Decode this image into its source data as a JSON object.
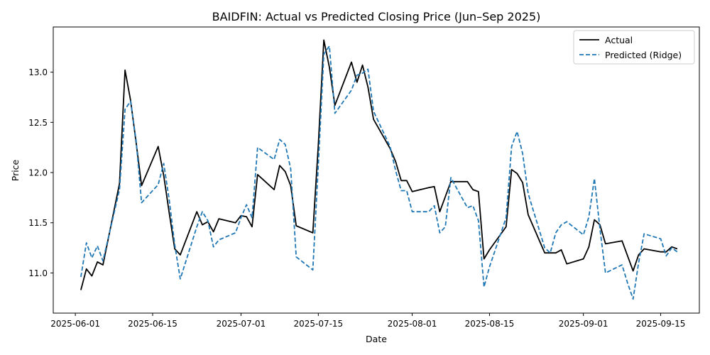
{
  "chart_data": {
    "type": "line",
    "title": "BAIDFIN: Actual vs Predicted Closing Price (Jun–Sep 2025)",
    "xlabel": "Date",
    "ylabel": "Price",
    "grid": false,
    "legend_position": "top-right",
    "xlim": [
      "2025-05-28",
      "2025-09-22"
    ],
    "ylim": [
      10.6,
      13.45
    ],
    "x_ticks": [
      "2025-06-01",
      "2025-06-15",
      "2025-07-01",
      "2025-07-15",
      "2025-08-01",
      "2025-08-15",
      "2025-09-01",
      "2025-09-15"
    ],
    "y_ticks": [
      "11.0",
      "11.5",
      "12.0",
      "12.5",
      "13.0"
    ],
    "series": [
      {
        "name": "Actual",
        "color": "#000000",
        "dash": "solid",
        "points": [
          [
            "2025-06-02",
            10.83
          ],
          [
            "2025-06-03",
            11.04
          ],
          [
            "2025-06-04",
            10.97
          ],
          [
            "2025-06-05",
            11.11
          ],
          [
            "2025-06-06",
            11.08
          ],
          [
            "2025-06-09",
            11.89
          ],
          [
            "2025-06-10",
            13.02
          ],
          [
            "2025-06-11",
            12.72
          ],
          [
            "2025-06-12",
            12.3
          ],
          [
            "2025-06-13",
            11.87
          ],
          [
            "2025-06-16",
            12.26
          ],
          [
            "2025-06-17",
            11.97
          ],
          [
            "2025-06-18",
            11.6
          ],
          [
            "2025-06-19",
            11.24
          ],
          [
            "2025-06-20",
            11.18
          ],
          [
            "2025-06-23",
            11.61
          ],
          [
            "2025-06-24",
            11.48
          ],
          [
            "2025-06-25",
            11.51
          ],
          [
            "2025-06-26",
            11.41
          ],
          [
            "2025-06-27",
            11.54
          ],
          [
            "2025-06-30",
            11.5
          ],
          [
            "2025-07-01",
            11.57
          ],
          [
            "2025-07-02",
            11.56
          ],
          [
            "2025-07-03",
            11.46
          ],
          [
            "2025-07-04",
            11.98
          ],
          [
            "2025-07-07",
            11.83
          ],
          [
            "2025-07-08",
            12.07
          ],
          [
            "2025-07-09",
            12.01
          ],
          [
            "2025-07-10",
            11.87
          ],
          [
            "2025-07-11",
            11.47
          ],
          [
            "2025-07-14",
            11.4
          ],
          [
            "2025-07-15",
            12.27
          ],
          [
            "2025-07-16",
            13.32
          ],
          [
            "2025-07-17",
            13.05
          ],
          [
            "2025-07-18",
            12.67
          ],
          [
            "2025-07-21",
            13.1
          ],
          [
            "2025-07-22",
            12.9
          ],
          [
            "2025-07-23",
            13.07
          ],
          [
            "2025-07-24",
            12.85
          ],
          [
            "2025-07-25",
            12.53
          ],
          [
            "2025-07-28",
            12.24
          ],
          [
            "2025-07-29",
            12.11
          ],
          [
            "2025-07-30",
            11.92
          ],
          [
            "2025-07-31",
            11.92
          ],
          [
            "2025-08-01",
            11.81
          ],
          [
            "2025-08-04",
            11.85
          ],
          [
            "2025-08-05",
            11.86
          ],
          [
            "2025-08-06",
            11.61
          ],
          [
            "2025-08-07",
            11.76
          ],
          [
            "2025-08-08",
            11.91
          ],
          [
            "2025-08-11",
            11.91
          ],
          [
            "2025-08-12",
            11.83
          ],
          [
            "2025-08-13",
            11.81
          ],
          [
            "2025-08-14",
            11.14
          ],
          [
            "2025-08-15",
            11.23
          ],
          [
            "2025-08-18",
            11.46
          ],
          [
            "2025-08-19",
            12.03
          ],
          [
            "2025-08-20",
            11.99
          ],
          [
            "2025-08-21",
            11.9
          ],
          [
            "2025-08-22",
            11.58
          ],
          [
            "2025-08-25",
            11.2
          ],
          [
            "2025-08-26",
            11.2
          ],
          [
            "2025-08-27",
            11.2
          ],
          [
            "2025-08-28",
            11.23
          ],
          [
            "2025-08-29",
            11.09
          ],
          [
            "2025-09-01",
            11.14
          ],
          [
            "2025-09-02",
            11.26
          ],
          [
            "2025-09-03",
            11.53
          ],
          [
            "2025-09-04",
            11.48
          ],
          [
            "2025-09-05",
            11.29
          ],
          [
            "2025-09-08",
            11.32
          ],
          [
            "2025-09-09",
            11.17
          ],
          [
            "2025-09-10",
            11.02
          ],
          [
            "2025-09-11",
            11.18
          ],
          [
            "2025-09-12",
            11.24
          ],
          [
            "2025-09-15",
            11.21
          ],
          [
            "2025-09-16",
            11.21
          ],
          [
            "2025-09-17",
            11.26
          ],
          [
            "2025-09-18",
            11.24
          ]
        ]
      },
      {
        "name": "Predicted (Ridge)",
        "color": "#1f77b4",
        "dash": "dashed",
        "points": [
          [
            "2025-06-02",
            10.96
          ],
          [
            "2025-06-03",
            11.3
          ],
          [
            "2025-06-04",
            11.15
          ],
          [
            "2025-06-05",
            11.27
          ],
          [
            "2025-06-06",
            11.12
          ],
          [
            "2025-06-09",
            11.83
          ],
          [
            "2025-06-10",
            12.63
          ],
          [
            "2025-06-11",
            12.71
          ],
          [
            "2025-06-12",
            12.32
          ],
          [
            "2025-06-13",
            11.7
          ],
          [
            "2025-06-16",
            11.88
          ],
          [
            "2025-06-17",
            12.09
          ],
          [
            "2025-06-18",
            11.73
          ],
          [
            "2025-06-19",
            11.28
          ],
          [
            "2025-06-20",
            10.94
          ],
          [
            "2025-06-23",
            11.46
          ],
          [
            "2025-06-24",
            11.61
          ],
          [
            "2025-06-25",
            11.52
          ],
          [
            "2025-06-26",
            11.26
          ],
          [
            "2025-06-27",
            11.33
          ],
          [
            "2025-06-30",
            11.4
          ],
          [
            "2025-07-01",
            11.55
          ],
          [
            "2025-07-02",
            11.68
          ],
          [
            "2025-07-03",
            11.55
          ],
          [
            "2025-07-04",
            12.25
          ],
          [
            "2025-07-07",
            12.13
          ],
          [
            "2025-07-08",
            12.33
          ],
          [
            "2025-07-09",
            12.28
          ],
          [
            "2025-07-10",
            12.04
          ],
          [
            "2025-07-11",
            11.16
          ],
          [
            "2025-07-14",
            11.03
          ],
          [
            "2025-07-15",
            12.07
          ],
          [
            "2025-07-16",
            13.18
          ],
          [
            "2025-07-17",
            13.26
          ],
          [
            "2025-07-18",
            12.59
          ],
          [
            "2025-07-21",
            12.82
          ],
          [
            "2025-07-22",
            12.97
          ],
          [
            "2025-07-23",
            12.99
          ],
          [
            "2025-07-24",
            13.03
          ],
          [
            "2025-07-25",
            12.61
          ],
          [
            "2025-07-28",
            12.26
          ],
          [
            "2025-07-29",
            12.02
          ],
          [
            "2025-07-30",
            11.82
          ],
          [
            "2025-07-31",
            11.82
          ],
          [
            "2025-08-01",
            11.61
          ],
          [
            "2025-08-04",
            11.61
          ],
          [
            "2025-08-05",
            11.67
          ],
          [
            "2025-08-06",
            11.4
          ],
          [
            "2025-08-07",
            11.46
          ],
          [
            "2025-08-08",
            11.95
          ],
          [
            "2025-08-11",
            11.65
          ],
          [
            "2025-08-12",
            11.67
          ],
          [
            "2025-08-13",
            11.52
          ],
          [
            "2025-08-14",
            10.86
          ],
          [
            "2025-08-15",
            11.06
          ],
          [
            "2025-08-18",
            11.55
          ],
          [
            "2025-08-19",
            12.26
          ],
          [
            "2025-08-20",
            12.41
          ],
          [
            "2025-08-21",
            12.19
          ],
          [
            "2025-08-22",
            11.79
          ],
          [
            "2025-08-25",
            11.25
          ],
          [
            "2025-08-26",
            11.2
          ],
          [
            "2025-08-27",
            11.4
          ],
          [
            "2025-08-28",
            11.48
          ],
          [
            "2025-08-29",
            11.51
          ],
          [
            "2025-09-01",
            11.38
          ],
          [
            "2025-09-02",
            11.56
          ],
          [
            "2025-09-03",
            11.94
          ],
          [
            "2025-09-04",
            11.44
          ],
          [
            "2025-09-05",
            11.0
          ],
          [
            "2025-09-08",
            11.08
          ],
          [
            "2025-09-09",
            10.9
          ],
          [
            "2025-09-10",
            10.74
          ],
          [
            "2025-09-11",
            11.1
          ],
          [
            "2025-09-12",
            11.39
          ],
          [
            "2025-09-15",
            11.34
          ],
          [
            "2025-09-16",
            11.17
          ],
          [
            "2025-09-17",
            11.25
          ],
          [
            "2025-09-18",
            11.21
          ]
        ]
      }
    ]
  }
}
